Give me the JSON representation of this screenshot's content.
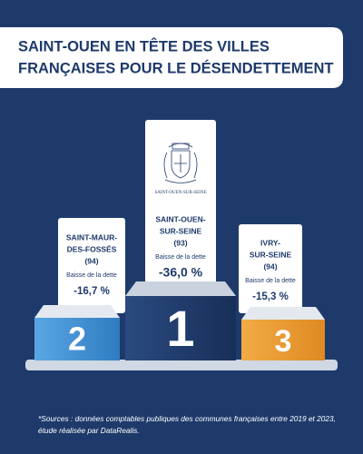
{
  "header": {
    "title": [
      "SAINT-OUEN EN TÊTE DES VILLES",
      "FRANÇAISES POUR LE DÉSENDETTEMENT"
    ]
  },
  "logo": {
    "text": "SAINT-OUEN-SUR-SEINE"
  },
  "podium": [
    {
      "rank": "2",
      "city": [
        "SAINT-MAUR-",
        "DES-FOSSÉS"
      ],
      "dept": "(94)",
      "label": "Baisse de la dette",
      "value": "-16,7 %"
    },
    {
      "rank": "1",
      "city": [
        "SAINT-OUEN-",
        "SUR-SEINE"
      ],
      "dept": "(93)",
      "label": "Baisse de la dette",
      "value": "-36,0 %"
    },
    {
      "rank": "3",
      "city": [
        "IVRY-",
        "SUR-SEINE"
      ],
      "dept": "(94)",
      "label": "Baisse de la dette",
      "value": "-15,3 %"
    }
  ],
  "footnote": [
    "*Sources : données comptables publiques des communes françaises entre 2019 et 2023,",
    "étude réalisée par DataRealis."
  ]
}
